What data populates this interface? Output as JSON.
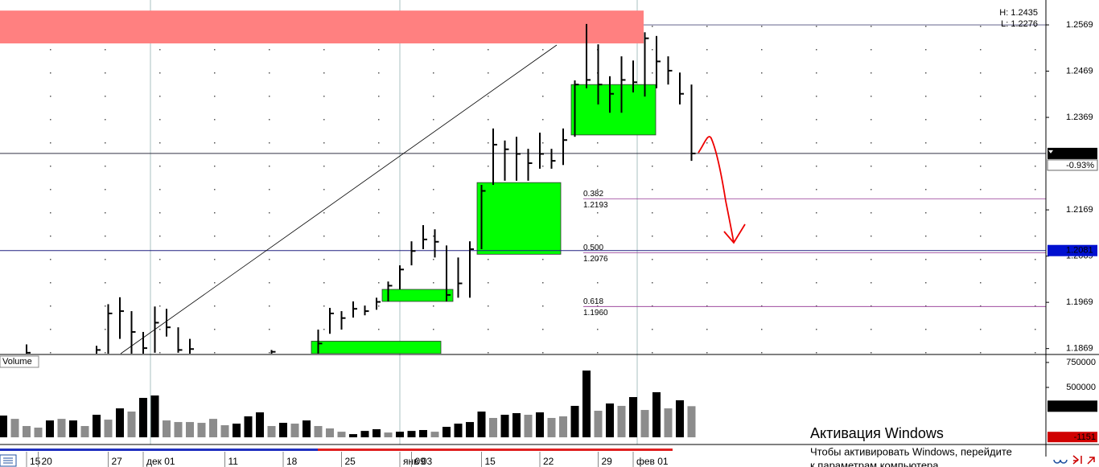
{
  "chart_data": [
    {
      "type": "ohlc",
      "high_label": "H: 1.2435",
      "low_label": "L: 1.2276",
      "categories": [
        null,
        null,
        "15",
        "20",
        null,
        null,
        null,
        null,
        null,
        "27",
        null,
        null,
        "дек 01",
        null,
        null,
        null,
        null,
        null,
        null,
        "11",
        null,
        null,
        null,
        null,
        "18",
        null,
        null,
        null,
        null,
        "25",
        null,
        null,
        null,
        null,
        "янв 03",
        "09",
        null,
        null,
        null,
        null,
        null,
        "15",
        null,
        null,
        null,
        null,
        "22",
        null,
        null,
        null,
        null,
        "29",
        null,
        null,
        "фев 01",
        null,
        null,
        null,
        null,
        null
      ],
      "high": [
        null,
        null,
        1.1878,
        null,
        null,
        null,
        null,
        null,
        1.1875,
        1.1965,
        1.198,
        1.195,
        1.1905,
        1.196,
        1.1955,
        1.1915,
        1.189,
        null,
        null,
        null,
        null,
        null,
        null,
        1.1866,
        null,
        null,
        null,
        1.191,
        1.1957,
        1.195,
        1.1971,
        1.1962,
        1.1979,
        1.2014,
        1.2049,
        1.2101,
        1.2136,
        1.2127,
        1.2092,
        1.2066,
        1.2101,
        1.2223,
        1.2345,
        1.2319,
        1.2327,
        1.2301,
        1.2336,
        1.2301,
        1.2345,
        1.2449,
        1.2571,
        1.2527,
        1.2458,
        1.2501,
        1.2492,
        1.2553,
        1.2545,
        1.2501,
        1.2466,
        1.244
      ],
      "low": [
        null,
        null,
        1.185,
        null,
        null,
        null,
        null,
        null,
        1.185,
        1.185,
        1.189,
        1.1855,
        1.1855,
        1.186,
        1.1895,
        1.186,
        1.1855,
        null,
        null,
        null,
        null,
        null,
        null,
        1.185,
        null,
        null,
        null,
        1.1855,
        1.1901,
        1.191,
        1.1936,
        1.1941,
        1.1953,
        1.1971,
        1.1997,
        1.2049,
        1.2084,
        1.2066,
        1.1971,
        1.1979,
        1.1979,
        1.2084,
        1.2223,
        1.2232,
        1.2232,
        1.2232,
        1.2258,
        1.2258,
        1.2266,
        1.2327,
        1.2432,
        1.2397,
        1.2379,
        1.2379,
        1.2423,
        1.2414,
        1.2432,
        1.244,
        1.2397,
        1.2275
      ],
      "close": [
        null,
        null,
        1.186,
        null,
        null,
        null,
        null,
        null,
        1.1866,
        1.1945,
        1.195,
        1.1905,
        1.187,
        1.1925,
        1.1915,
        1.1866,
        1.1868,
        null,
        null,
        null,
        null,
        null,
        null,
        1.1862,
        null,
        null,
        null,
        1.188,
        1.1945,
        1.1935,
        1.1955,
        1.195,
        1.197,
        1.2005,
        1.204,
        1.208,
        1.2105,
        1.21,
        1.1985,
        1.201,
        1.2084,
        1.221,
        1.231,
        1.23,
        1.229,
        1.227,
        1.229,
        1.2275,
        1.232,
        1.244,
        1.245,
        1.244,
        1.242,
        1.245,
        1.2445,
        1.254,
        1.249,
        1.247,
        1.242,
        1.2291
      ],
      "color": "#000000",
      "ylim": [
        1.1858,
        1.2602
      ],
      "yticks": [
        1.1869,
        1.1969,
        1.2069,
        1.2169,
        1.2369,
        1.2469,
        1.2569
      ],
      "last": 1.2291,
      "change": {
        "value": -0.93,
        "label": "-0.93%"
      },
      "level": 1.2081,
      "zones": [
        {
          "color": "#ff8080",
          "high": 1.26,
          "low": 1.2529
        },
        {
          "color": "#00ff00",
          "high": 1.244,
          "low": 1.2331
        },
        {
          "color": "#00ff00",
          "high": 1.2228,
          "low": 1.2073
        },
        {
          "color": "#00ff00",
          "high": 1.1997,
          "low": 1.1971
        },
        {
          "color": "#00ff00",
          "high": 1.1885,
          "low": 1.1858
        }
      ],
      "fib_levels": [
        {
          "ratio": "0.382",
          "price": 1.2193
        },
        {
          "ratio": "0.500",
          "price": 1.2076
        },
        {
          "ratio": "0.618",
          "price": {
            "value": 1.196,
            "label": "1.1960"
          }
        }
      ]
    },
    {
      "type": "bar",
      "title": "Volume",
      "values": [
        218000,
        185000,
        113000,
        97000,
        169000,
        185000,
        169000,
        113000,
        226000,
        177000,
        290000,
        258000,
        395000,
        419000,
        169000,
        153000,
        153000,
        145000,
        185000,
        121000,
        137000,
        210000,
        250000,
        113000,
        145000,
        137000,
        169000,
        113000,
        89000,
        56000,
        32000,
        64000,
        81000,
        48000,
        56000,
        64000,
        73000,
        56000,
        105000,
        137000,
        153000,
        258000,
        194000,
        226000,
        242000,
        226000,
        250000,
        194000,
        210000,
        315000,
        669000,
        266000,
        339000,
        315000,
        403000,
        274000,
        452000,
        290000,
        371000,
        311869
      ],
      "colors": [
        "#000000",
        "#8c8c8c",
        "#8c8c8c",
        "#8c8c8c",
        "#000000",
        "#8c8c8c",
        "#000000",
        "#8c8c8c",
        "#000000",
        "#8c8c8c",
        "#000000",
        "#8c8c8c",
        "#000000",
        "#000000",
        "#8c8c8c",
        "#8c8c8c",
        "#8c8c8c",
        "#8c8c8c",
        "#8c8c8c",
        "#8c8c8c",
        "#000000",
        "#000000",
        "#000000",
        "#8c8c8c",
        "#000000",
        "#8c8c8c",
        "#000000",
        "#8c8c8c",
        "#8c8c8c",
        "#8c8c8c",
        "#000000",
        "#000000",
        "#000000",
        "#8c8c8c",
        "#000000",
        "#000000",
        "#000000",
        "#8c8c8c",
        "#000000",
        "#000000",
        "#000000",
        "#000000",
        "#8c8c8c",
        "#000000",
        "#000000",
        "#8c8c8c",
        "#000000",
        "#8c8c8c",
        "#8c8c8c",
        "#000000",
        "#000000",
        "#8c8c8c",
        "#000000",
        "#8c8c8c",
        "#000000",
        "#8c8c8c",
        "#000000",
        "#8c8c8c",
        "#000000",
        "#8c8c8c"
      ],
      "ylim": [
        -72000,
        830000
      ],
      "yticks": [
        500000,
        750000
      ],
      "last": 311869,
      "other": -1151
    }
  ],
  "watermark": {
    "title": "Активация Windows",
    "lines": [
      "Чтобы активировать Windows, перейдите",
      "к параметрам компьютера."
    ]
  }
}
